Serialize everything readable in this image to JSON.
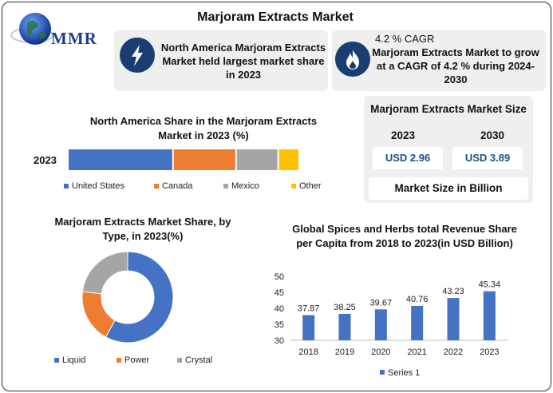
{
  "header": {
    "title": "Marjoram Extracts Market",
    "logo_text": "MMR"
  },
  "info_boxes": [
    {
      "icon": "lightning-bolt-icon",
      "text": "North America Marjoram Extracts Market held largest market share in 2023"
    },
    {
      "icon": "flame-icon",
      "cagr": "4.2 % CAGR",
      "text": "Marjoram Extracts Market to grow at a CAGR of 4.2 % during 2024-2030"
    }
  ],
  "market_size": {
    "title": "Marjoram Extracts Market Size",
    "year_a": "2023",
    "year_b": "2030",
    "value_a": "USD 2.96",
    "value_b": "USD 3.89",
    "footer": "Market Size in Billion"
  },
  "colors": {
    "blue": "#4472c4",
    "orange": "#ed7d31",
    "gray": "#a5a5a5",
    "yellow": "#ffc000",
    "navy": "#1b3e72"
  },
  "chart_data": [
    {
      "type": "bar",
      "orientation": "horizontal-stacked",
      "title": "North America Share in the Marjoram Extracts Market in 2023 (%)",
      "categories": [
        "2023"
      ],
      "series": [
        {
          "name": "United States",
          "values": [
            50
          ]
        },
        {
          "name": "Canada",
          "values": [
            30
          ]
        },
        {
          "name": "Mexico",
          "values": [
            20
          ]
        },
        {
          "name": "Other",
          "values": [
            10
          ]
        }
      ],
      "legend": "bottom"
    },
    {
      "type": "pie",
      "style": "donut",
      "title": "Marjoram Extracts Market Share, by Type, in 2023(%)",
      "labels": [
        "Liquid",
        "Power",
        "Crystal"
      ],
      "values": [
        58,
        19,
        23
      ],
      "legend": "bottom"
    },
    {
      "type": "bar",
      "title": "Global Spices and Herbs total Revenue Share per Capita from 2018 to 2023(in USD Billion)",
      "categories": [
        "2018",
        "2019",
        "2020",
        "2021",
        "2022",
        "2023"
      ],
      "series": [
        {
          "name": "Series 1",
          "values": [
            37.87,
            38.25,
            39.67,
            40.76,
            43.23,
            45.34
          ]
        }
      ],
      "data_labels": [
        "37.87",
        "38.25",
        "39.67",
        "40.76",
        "43.23",
        "45.34"
      ],
      "ylim": [
        30,
        50
      ],
      "yticks": [
        "30",
        "35",
        "40",
        "45",
        "50"
      ],
      "legend": "bottom"
    }
  ]
}
